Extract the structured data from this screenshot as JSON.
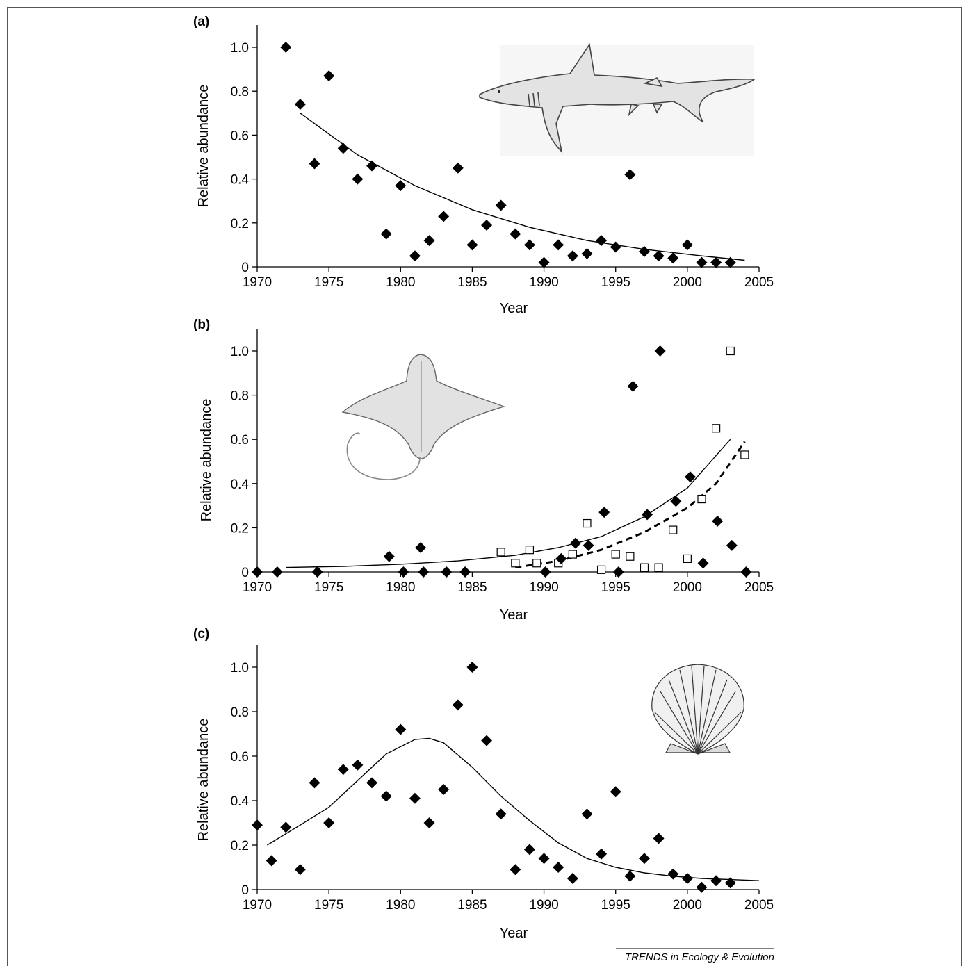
{
  "credit": "TRENDS in Ecology & Evolution",
  "colors": {
    "ink": "#000000",
    "open_marker_fill": "#ffffff",
    "illustration": "#777777"
  },
  "chart_data": [
    {
      "type": "scatter",
      "panel_label": "(a)",
      "title": "",
      "xlabel": "Year",
      "ylabel": "Relative abundance",
      "xlim": [
        1970,
        2005
      ],
      "ylim": [
        0,
        1.1
      ],
      "x_ticks": [
        1970,
        1975,
        1980,
        1985,
        1990,
        1995,
        2000,
        2005
      ],
      "y_ticks": [
        0,
        0.2,
        0.4,
        0.6,
        0.8,
        1.0
      ],
      "y_tick_labels": [
        "0",
        "0.2",
        "0.4",
        "0.6",
        "0.8",
        "1.0"
      ],
      "grid": false,
      "illustration": "shark-icon",
      "series": [
        {
          "marker": "filled-diamond",
          "x": [
            1972,
            1973,
            1974,
            1975,
            1976,
            1977,
            1978,
            1979,
            1980,
            1981,
            1982,
            1983,
            1984,
            1985,
            1986,
            1987,
            1988,
            1989,
            1990,
            1991,
            1992,
            1993,
            1994,
            1995,
            1996,
            1997,
            1998,
            1999,
            2000,
            2001,
            2002,
            2003
          ],
          "y": [
            1.0,
            0.74,
            0.47,
            0.87,
            0.54,
            0.4,
            0.46,
            0.15,
            0.37,
            0.05,
            0.12,
            0.23,
            0.45,
            0.1,
            0.19,
            0.28,
            0.15,
            0.1,
            0.02,
            0.1,
            0.05,
            0.06,
            0.12,
            0.09,
            0.42,
            0.07,
            0.05,
            0.04,
            0.1,
            0.02,
            0.02,
            0.02
          ]
        }
      ],
      "fits": [
        {
          "style": "solid",
          "x": [
            1973,
            1977,
            1981,
            1985,
            1989,
            1993,
            1997,
            2001,
            2004
          ],
          "y": [
            0.7,
            0.51,
            0.37,
            0.26,
            0.18,
            0.12,
            0.08,
            0.05,
            0.03
          ]
        }
      ]
    },
    {
      "type": "scatter",
      "panel_label": "(b)",
      "title": "",
      "xlabel": "Year",
      "ylabel": "Relative abundance",
      "xlim": [
        1970,
        2005
      ],
      "ylim": [
        0,
        1.1
      ],
      "x_ticks": [
        1970,
        1975,
        1980,
        1985,
        1990,
        1995,
        2000,
        2005
      ],
      "y_ticks": [
        0,
        0.2,
        0.4,
        0.6,
        0.8,
        1.0
      ],
      "y_tick_labels": [
        "0",
        "0.2",
        "0.4",
        "0.6",
        "0.8",
        "1.0"
      ],
      "grid": false,
      "illustration": "ray-icon",
      "series": [
        {
          "marker": "filled-diamond",
          "x": [
            1970,
            1971.4,
            1974.2,
            1979.2,
            1980.2,
            1981.4,
            1981.6,
            1983.2,
            1984.5,
            1990.1,
            1991.2,
            1992.2,
            1993.1,
            1994.2,
            1995.2,
            1996.2,
            1998.1,
            1997.2,
            1999.2,
            2000.2,
            2001.1,
            2002.1,
            2003.1,
            2004.1
          ],
          "y": [
            0,
            0,
            0,
            0.07,
            0,
            0.11,
            0,
            0,
            0,
            0,
            0.06,
            0.13,
            0.12,
            0.27,
            0,
            0.84,
            1.0,
            0.26,
            0.32,
            0.43,
            0.04,
            0.23,
            0.12,
            0
          ]
        },
        {
          "marker": "open-square",
          "x": [
            1987,
            1988,
            1989,
            1989.5,
            1991,
            1992,
            1993,
            1994,
            1995,
            1996,
            1997,
            1998,
            1999,
            2000,
            2001,
            2002,
            2003,
            2004
          ],
          "y": [
            0.09,
            0.04,
            0.1,
            0.04,
            0.04,
            0.08,
            0.22,
            0.01,
            0.08,
            0.07,
            0.02,
            0.02,
            0.19,
            0.06,
            0.33,
            0.65,
            1.0,
            0.53
          ]
        }
      ],
      "fits": [
        {
          "style": "solid",
          "x": [
            1972,
            1976,
            1980,
            1984,
            1988,
            1991,
            1994,
            1997,
            2000,
            2003
          ],
          "y": [
            0.02,
            0.025,
            0.035,
            0.05,
            0.075,
            0.11,
            0.16,
            0.25,
            0.38,
            0.6
          ]
        },
        {
          "style": "dashed",
          "x": [
            1988,
            1991,
            1994,
            1997,
            2000,
            2002,
            2004
          ],
          "y": [
            0.02,
            0.05,
            0.1,
            0.18,
            0.29,
            0.4,
            0.59
          ]
        }
      ]
    },
    {
      "type": "scatter",
      "panel_label": "(c)",
      "title": "",
      "xlabel": "Year",
      "ylabel": "Relative abundance",
      "xlim": [
        1970,
        2005
      ],
      "ylim": [
        0,
        1.1
      ],
      "x_ticks": [
        1970,
        1975,
        1980,
        1985,
        1990,
        1995,
        2000,
        2005
      ],
      "y_ticks": [
        0,
        0.2,
        0.4,
        0.6,
        0.8,
        1.0
      ],
      "y_tick_labels": [
        "0",
        "0.2",
        "0.4",
        "0.6",
        "0.8",
        "1.0"
      ],
      "grid": false,
      "illustration": "scallop-icon",
      "series": [
        {
          "marker": "filled-diamond",
          "x": [
            1970,
            1971,
            1972,
            1973,
            1974,
            1975,
            1976,
            1977,
            1978,
            1979,
            1980,
            1981,
            1982,
            1983,
            1984,
            1985,
            1986,
            1987,
            1988,
            1989,
            1990,
            1991,
            1992,
            1993,
            1994,
            1995,
            1996,
            1997,
            1998,
            1999,
            2000,
            2001,
            2002,
            2003
          ],
          "y": [
            0.29,
            0.13,
            0.28,
            0.09,
            0.48,
            0.3,
            0.54,
            0.56,
            0.48,
            0.42,
            0.72,
            0.41,
            0.3,
            0.45,
            0.83,
            1.0,
            0.67,
            0.34,
            0.09,
            0.18,
            0.14,
            0.1,
            0.05,
            0.34,
            0.16,
            0.44,
            0.06,
            0.14,
            0.23,
            0.07,
            0.05,
            0.01,
            0.04,
            0.03
          ]
        }
      ],
      "fits": [
        {
          "style": "solid",
          "x": [
            1970.7,
            1973,
            1975,
            1977,
            1979,
            1981,
            1982,
            1983,
            1985,
            1987,
            1989,
            1991,
            1993,
            1995,
            1997,
            1999,
            2001,
            2003,
            2005
          ],
          "y": [
            0.2,
            0.29,
            0.37,
            0.49,
            0.61,
            0.675,
            0.68,
            0.66,
            0.55,
            0.42,
            0.31,
            0.21,
            0.14,
            0.1,
            0.075,
            0.06,
            0.05,
            0.045,
            0.04
          ]
        }
      ]
    }
  ]
}
